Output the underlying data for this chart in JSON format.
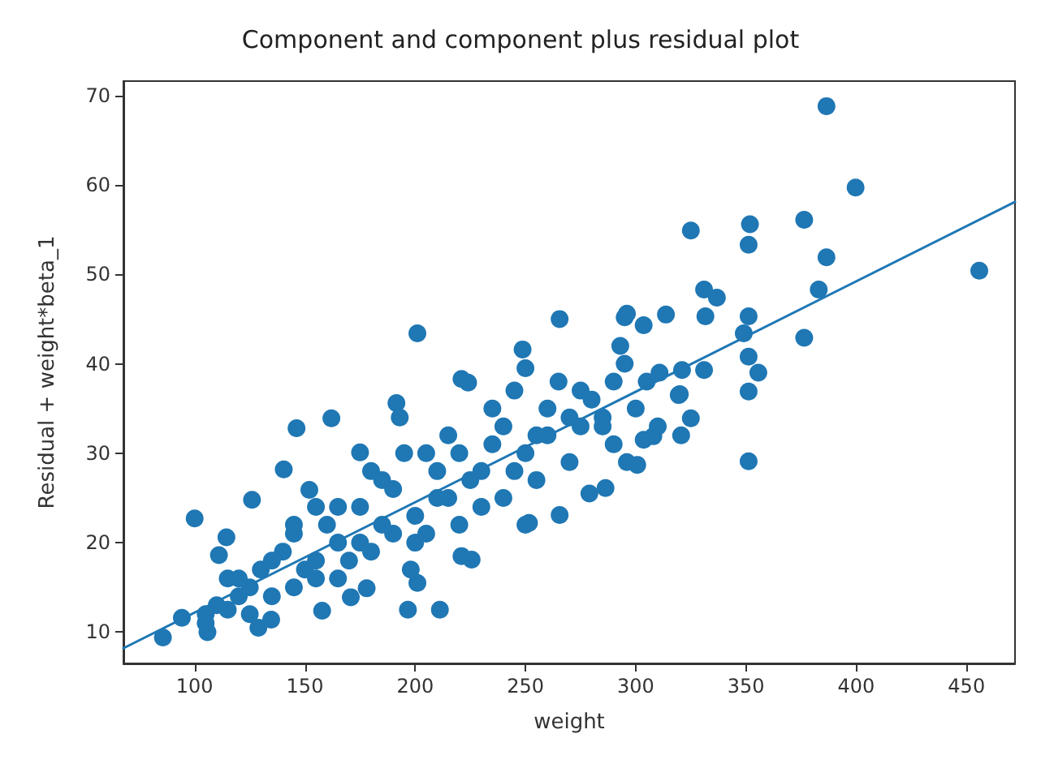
{
  "chart_data": {
    "type": "scatter",
    "title": "Component and component plus residual plot",
    "xlabel": "weight",
    "ylabel": "Residual + weight*beta_1",
    "xlim": [
      67.7,
      472
    ],
    "ylim": [
      6.5,
      71.6
    ],
    "xticks": [
      100,
      150,
      200,
      250,
      300,
      350,
      400,
      450
    ],
    "yticks": [
      10,
      20,
      30,
      40,
      50,
      60,
      70
    ],
    "grid": false,
    "marker": "circle",
    "series": [
      {
        "type": "scatter",
        "color": "#1f77b4",
        "x": [
          386.5,
          399.7,
          325,
          351.8,
          351.2,
          376.4,
          386.5,
          455.8,
          383,
          376.4,
          331,
          336.8,
          331.6,
          351.2,
          349,
          351.2,
          355.6,
          331,
          321,
          201,
          265.5,
          313.7,
          295,
          303.6,
          248.7,
          310.8,
          320,
          351.2,
          351.2,
          300.7,
          286.3,
          265.5,
          251.6,
          225.6,
          211.2,
          196.7,
          201,
          85.6,
          105.8,
          128.9,
          100,
          146.2,
          162,
          140.4,
          126,
          111,
          94.2,
          157.8,
          170.8,
          191.5,
          224,
          319.5,
          325,
          320.6,
          303.6,
          114.4,
          152,
          175,
          193,
          221,
          250,
          293,
          296,
          134.7,
          178,
          198,
          221,
          250,
          279,
          296,
          308,
          150,
          175,
          200,
          225,
          250,
          275,
          125,
          110,
          160,
          190,
          210,
          240,
          260,
          280,
          230,
          200,
          170,
          140,
          130,
          120,
          145,
          165,
          185,
          205,
          215,
          235,
          255,
          270,
          285,
          290,
          245,
          185,
          155,
          115,
          105,
          105,
          115,
          120,
          125,
          135,
          135,
          145,
          145,
          155,
          155,
          165,
          165,
          175,
          180,
          180,
          190,
          195,
          205,
          210,
          215,
          220,
          220,
          230,
          235,
          240,
          245,
          255,
          260,
          265,
          270,
          275,
          285,
          290,
          295,
          300,
          305,
          310
        ],
        "values": [
          68.8,
          59.7,
          54.9,
          55.6,
          53.3,
          56.1,
          51.9,
          50.4,
          48.3,
          42.9,
          48.3,
          47.4,
          45.3,
          45.3,
          43.4,
          40.8,
          39,
          39.3,
          39.3,
          43.4,
          45,
          45.5,
          45.2,
          44.3,
          41.6,
          39,
          36.6,
          36.9,
          29.1,
          28.7,
          26.1,
          23.1,
          22.2,
          18.1,
          12.5,
          12.5,
          15.5,
          9.4,
          10,
          10.5,
          22.7,
          32.8,
          33.9,
          28.2,
          24.8,
          18.6,
          11.6,
          12.4,
          13.9,
          35.6,
          37.9,
          36.5,
          33.9,
          32,
          31.5,
          20.6,
          25.9,
          30.1,
          34,
          38.3,
          39.5,
          42,
          45.6,
          11.4,
          14.9,
          17,
          18.5,
          22,
          25.5,
          29,
          31.9,
          17,
          20,
          23,
          27,
          30,
          33,
          15,
          13,
          22,
          26,
          28,
          33,
          35,
          36,
          24,
          20,
          18,
          19,
          17,
          14,
          21,
          24,
          27,
          30,
          25,
          31,
          32,
          34,
          33,
          38,
          28,
          22,
          16,
          16,
          12,
          11,
          12.5,
          16,
          12,
          14,
          18,
          15,
          22,
          18,
          24,
          16,
          20,
          24,
          19,
          28,
          21,
          30,
          21,
          25,
          32,
          22,
          30,
          28,
          35,
          25,
          37,
          27,
          32,
          38,
          29,
          37,
          34,
          31,
          40,
          35,
          38,
          33
        ]
      },
      {
        "type": "line",
        "color": "#1f77b4",
        "marker": "none",
        "line_style": "solid",
        "x": [
          67.7,
          472
        ],
        "values": [
          8.2,
          58.1
        ]
      }
    ]
  }
}
